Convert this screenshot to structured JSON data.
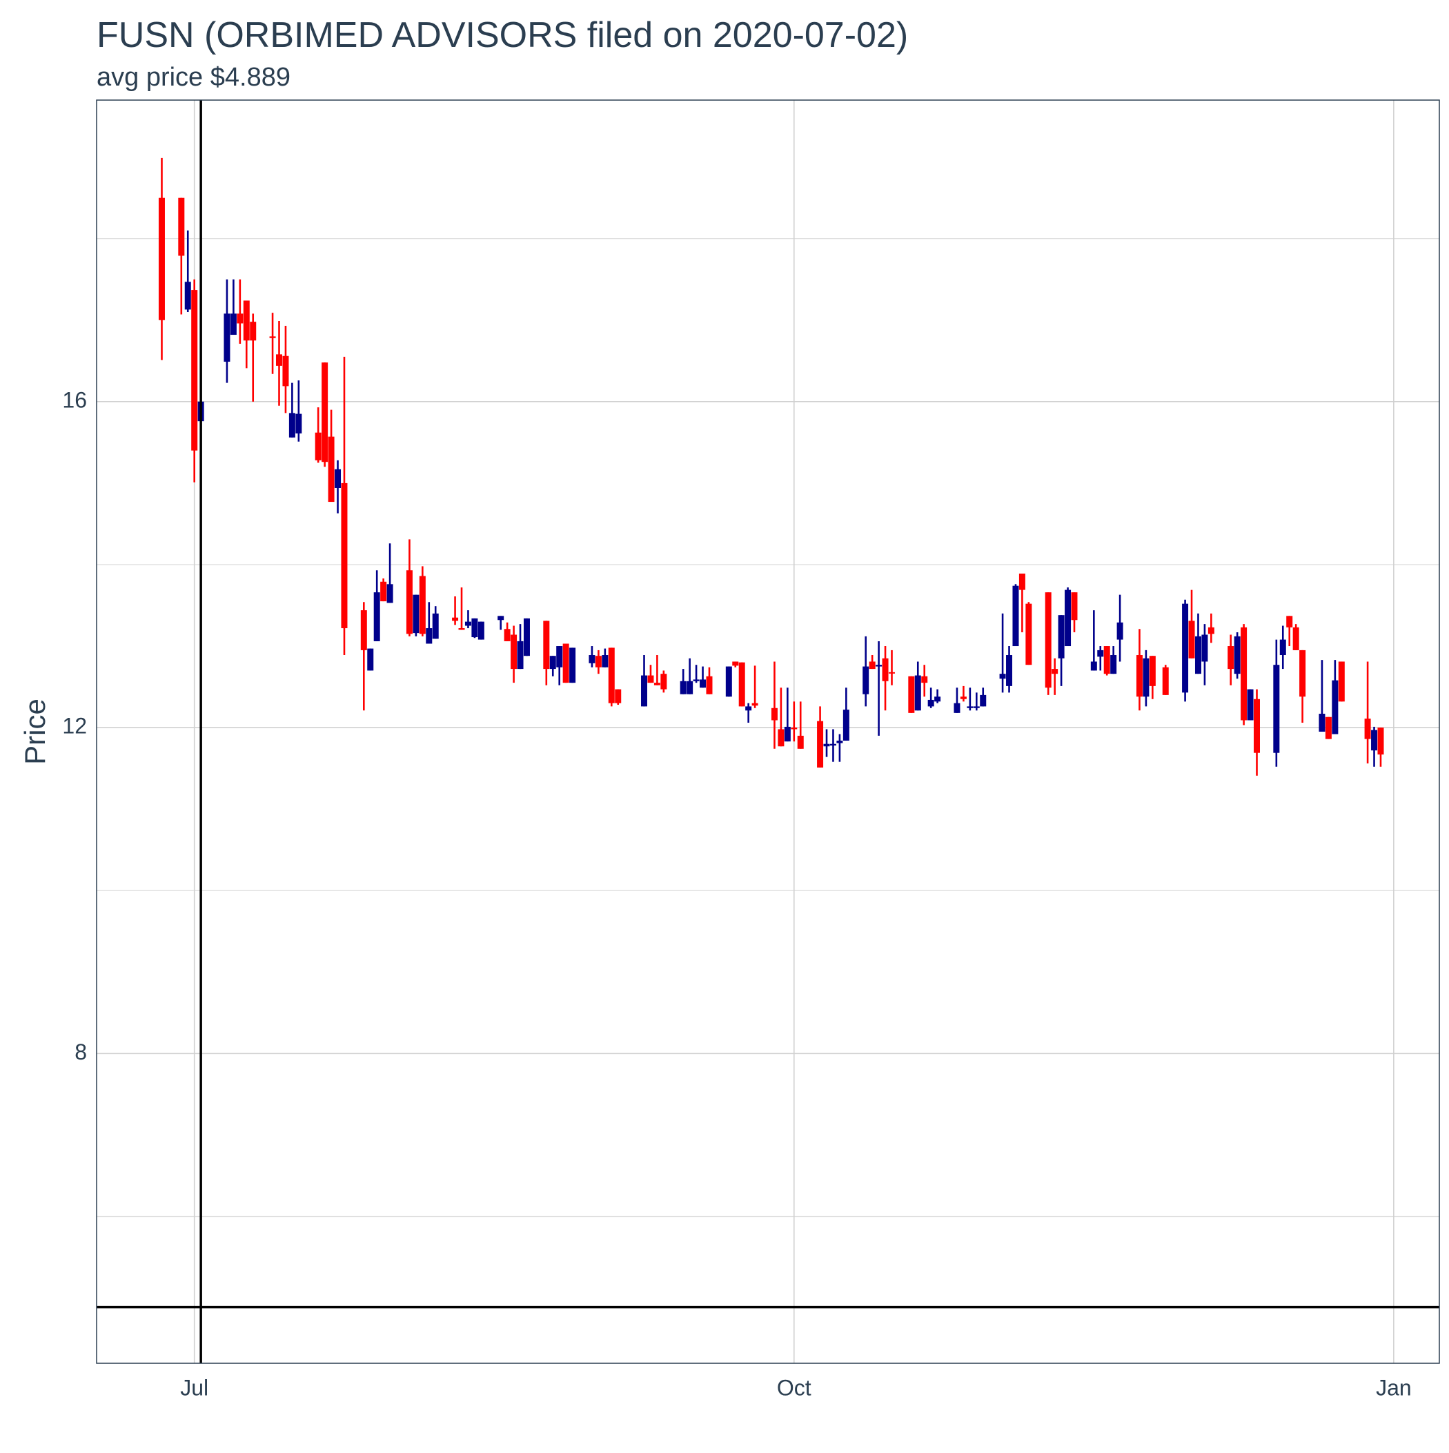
{
  "chart_data": {
    "type": "candlestick",
    "title": "FUSN (ORBIMED ADVISORS filed on 2020-07-02)",
    "subtitle": "avg price $4.889",
    "y_label": "Price",
    "x": [
      "2020-06-26",
      "2020-06-29",
      "2020-06-30",
      "2020-07-01",
      "2020-07-02",
      "2020-07-06",
      "2020-07-07",
      "2020-07-08",
      "2020-07-09",
      "2020-07-10",
      "2020-07-13",
      "2020-07-14",
      "2020-07-15",
      "2020-07-16",
      "2020-07-17",
      "2020-07-20",
      "2020-07-21",
      "2020-07-22",
      "2020-07-23",
      "2020-07-24",
      "2020-07-27",
      "2020-07-28",
      "2020-07-29",
      "2020-07-30",
      "2020-07-31",
      "2020-08-03",
      "2020-08-04",
      "2020-08-05",
      "2020-08-06",
      "2020-08-07",
      "2020-08-10",
      "2020-08-11",
      "2020-08-12",
      "2020-08-13",
      "2020-08-14",
      "2020-08-17",
      "2020-08-18",
      "2020-08-19",
      "2020-08-20",
      "2020-08-21",
      "2020-08-24",
      "2020-08-25",
      "2020-08-26",
      "2020-08-27",
      "2020-08-28",
      "2020-08-31",
      "2020-09-01",
      "2020-09-02",
      "2020-09-03",
      "2020-09-04",
      "2020-09-08",
      "2020-09-09",
      "2020-09-10",
      "2020-09-11",
      "2020-09-14",
      "2020-09-15",
      "2020-09-16",
      "2020-09-17",
      "2020-09-18",
      "2020-09-21",
      "2020-09-22",
      "2020-09-23",
      "2020-09-24",
      "2020-09-25",
      "2020-09-28",
      "2020-09-29",
      "2020-09-30",
      "2020-10-01",
      "2020-10-02",
      "2020-10-05",
      "2020-10-06",
      "2020-10-07",
      "2020-10-08",
      "2020-10-09",
      "2020-10-12",
      "2020-10-13",
      "2020-10-14",
      "2020-10-15",
      "2020-10-16",
      "2020-10-19",
      "2020-10-20",
      "2020-10-21",
      "2020-10-22",
      "2020-10-23",
      "2020-10-26",
      "2020-10-27",
      "2020-10-28",
      "2020-10-29",
      "2020-10-30",
      "2020-11-02",
      "2020-11-03",
      "2020-11-04",
      "2020-11-05",
      "2020-11-06",
      "2020-11-09",
      "2020-11-10",
      "2020-11-11",
      "2020-11-12",
      "2020-11-13",
      "2020-11-16",
      "2020-11-17",
      "2020-11-18",
      "2020-11-19",
      "2020-11-20",
      "2020-11-23",
      "2020-11-24",
      "2020-11-25",
      "2020-11-27",
      "2020-11-30",
      "2020-12-01",
      "2020-12-02",
      "2020-12-03",
      "2020-12-04",
      "2020-12-07",
      "2020-12-08",
      "2020-12-09",
      "2020-12-10",
      "2020-12-11",
      "2020-12-14",
      "2020-12-15",
      "2020-12-16",
      "2020-12-17",
      "2020-12-18",
      "2020-12-21",
      "2020-12-22",
      "2020-12-23",
      "2020-12-24",
      "2020-12-28",
      "2020-12-29",
      "2020-12-30"
    ],
    "open": [
      18.5,
      18.5,
      17.13,
      17.37,
      15.76,
      16.49,
      16.82,
      17.08,
      17.24,
      16.98,
      16.8,
      16.58,
      16.56,
      15.56,
      15.61,
      15.62,
      16.48,
      15.57,
      14.94,
      15.0,
      13.44,
      12.7,
      13.06,
      13.79,
      13.53,
      13.93,
      13.16,
      13.86,
      13.03,
      13.09,
      13.35,
      13.22,
      13.25,
      13.11,
      13.08,
      13.32,
      13.21,
      13.14,
      12.72,
      12.88,
      13.31,
      12.72,
      12.74,
      13.03,
      12.55,
      12.79,
      12.88,
      12.74,
      12.98,
      12.47,
      12.26,
      12.64,
      12.55,
      12.66,
      12.41,
      12.41,
      12.57,
      12.49,
      12.63,
      12.38,
      12.81,
      12.8,
      12.21,
      12.3,
      12.24,
      11.98,
      11.83,
      12.0,
      11.9,
      12.08,
      11.77,
      11.78,
      11.81,
      11.84,
      12.41,
      12.81,
      12.75,
      12.85,
      12.68,
      12.63,
      12.21,
      12.63,
      12.26,
      12.32,
      12.18,
      12.38,
      12.24,
      12.24,
      12.26,
      12.6,
      12.51,
      13.0,
      13.89,
      13.52,
      13.66,
      12.72,
      12.85,
      13.0,
      13.66,
      12.7,
      12.87,
      13.0,
      12.66,
      13.08,
      12.89,
      12.38,
      12.88,
      12.74,
      12.43,
      13.31,
      12.66,
      12.81,
      13.23,
      13.0,
      12.66,
      13.23,
      12.09,
      12.35,
      11.69,
      12.89,
      13.37,
      13.23,
      12.95,
      11.95,
      12.13,
      11.92,
      12.81,
      12.11,
      11.72,
      12.0
    ],
    "high": [
      18.99,
      18.5,
      18.1,
      17.5,
      16.0,
      17.5,
      17.5,
      17.5,
      17.24,
      17.08,
      17.09,
      16.99,
      16.93,
      16.23,
      16.26,
      15.93,
      16.48,
      15.9,
      15.28,
      16.55,
      13.54,
      12.97,
      13.93,
      13.83,
      14.26,
      14.31,
      13.63,
      13.98,
      13.54,
      13.49,
      13.61,
      13.72,
      13.44,
      13.34,
      13.3,
      13.37,
      13.29,
      13.25,
      13.27,
      13.34,
      13.31,
      12.88,
      13.0,
      13.03,
      12.98,
      13.0,
      12.95,
      12.97,
      12.98,
      12.47,
      12.89,
      12.77,
      12.89,
      12.7,
      12.72,
      12.85,
      12.77,
      12.75,
      12.74,
      12.75,
      12.81,
      12.8,
      12.3,
      12.76,
      12.81,
      12.49,
      12.49,
      12.32,
      12.32,
      12.26,
      11.98,
      11.98,
      11.92,
      12.49,
      13.12,
      12.89,
      13.06,
      13.0,
      12.95,
      12.63,
      12.81,
      12.77,
      12.49,
      12.47,
      12.49,
      12.51,
      12.49,
      12.43,
      12.49,
      13.4,
      13.0,
      13.76,
      13.89,
      13.54,
      13.66,
      12.85,
      13.38,
      13.72,
      13.66,
      13.44,
      13.0,
      13.0,
      13.0,
      13.63,
      13.21,
      12.95,
      12.88,
      12.77,
      13.57,
      13.69,
      13.4,
      13.27,
      13.4,
      13.14,
      13.17,
      13.27,
      12.47,
      12.47,
      13.08,
      13.25,
      13.37,
      13.27,
      12.95,
      12.83,
      12.13,
      12.83,
      12.81,
      12.81,
      12.01,
      12.0
    ],
    "low": [
      16.51,
      17.07,
      17.1,
      15.01,
      15.76,
      16.23,
      16.82,
      16.71,
      16.41,
      16.0,
      16.34,
      15.95,
      15.86,
      15.56,
      15.51,
      15.25,
      15.2,
      14.77,
      14.63,
      12.89,
      12.21,
      12.7,
      13.06,
      13.55,
      13.53,
      13.12,
      13.12,
      13.12,
      13.03,
      13.09,
      13.26,
      13.2,
      13.22,
      13.1,
      13.08,
      13.2,
      13.06,
      12.55,
      12.72,
      12.88,
      12.52,
      12.63,
      12.52,
      12.55,
      12.55,
      12.74,
      12.66,
      12.74,
      12.26,
      12.28,
      12.26,
      12.55,
      12.52,
      12.43,
      12.41,
      12.41,
      12.55,
      12.49,
      12.41,
      12.38,
      12.74,
      12.26,
      12.06,
      12.24,
      11.74,
      11.77,
      11.83,
      11.83,
      11.74,
      11.51,
      11.64,
      11.58,
      11.58,
      11.84,
      12.26,
      12.72,
      11.9,
      12.21,
      12.52,
      12.18,
      12.21,
      12.38,
      12.24,
      12.3,
      12.18,
      12.32,
      12.21,
      12.21,
      12.26,
      12.43,
      12.43,
      13.0,
      13.17,
      12.77,
      12.4,
      12.4,
      12.51,
      13.0,
      13.17,
      12.7,
      12.7,
      12.64,
      12.66,
      12.81,
      12.21,
      12.26,
      12.35,
      12.4,
      12.32,
      12.85,
      12.66,
      12.52,
      13.04,
      12.52,
      12.6,
      12.03,
      12.09,
      11.41,
      11.52,
      12.72,
      13.0,
      12.95,
      12.06,
      11.95,
      11.86,
      11.92,
      12.32,
      11.56,
      11.52,
      11.52
    ],
    "close": [
      17.0,
      17.79,
      17.47,
      15.4,
      16.0,
      17.08,
      17.08,
      16.96,
      16.75,
      16.75,
      16.78,
      16.44,
      16.19,
      15.86,
      15.85,
      15.28,
      15.26,
      14.77,
      15.17,
      13.22,
      12.95,
      12.97,
      13.66,
      13.55,
      13.76,
      13.15,
      13.63,
      13.15,
      13.22,
      13.4,
      13.31,
      13.2,
      13.3,
      13.34,
      13.3,
      13.37,
      13.06,
      12.72,
      13.06,
      13.34,
      12.72,
      12.88,
      13.0,
      12.55,
      12.98,
      12.89,
      12.74,
      12.89,
      12.3,
      12.3,
      12.64,
      12.55,
      12.52,
      12.47,
      12.57,
      12.57,
      12.59,
      12.59,
      12.41,
      12.75,
      12.76,
      12.26,
      12.26,
      12.27,
      12.09,
      11.77,
      12.01,
      11.98,
      11.74,
      11.51,
      11.8,
      11.8,
      11.84,
      12.22,
      12.75,
      12.72,
      12.77,
      12.57,
      12.67,
      12.18,
      12.64,
      12.55,
      12.34,
      12.38,
      12.3,
      12.35,
      12.26,
      12.26,
      12.4,
      12.66,
      12.89,
      13.74,
      13.69,
      12.77,
      12.49,
      12.66,
      13.38,
      13.69,
      13.32,
      12.81,
      12.95,
      12.66,
      12.89,
      13.29,
      12.38,
      12.85,
      12.51,
      12.4,
      13.52,
      12.85,
      13.12,
      13.14,
      13.15,
      12.72,
      13.12,
      12.09,
      12.47,
      11.69,
      12.77,
      13.08,
      13.23,
      12.95,
      12.38,
      12.17,
      11.86,
      12.58,
      12.32,
      11.86,
      11.97,
      11.67
    ],
    "up_color": "#00008b",
    "down_color": "#ff0000",
    "xlim": [
      "2020-06-16",
      "2021-01-08"
    ],
    "xticks": [
      {
        "value": "2020-07-01",
        "label": "Jul"
      },
      {
        "value": "2020-10-01",
        "label": "Oct"
      },
      {
        "value": "2021-01-01",
        "label": "Jan"
      }
    ],
    "ylim": [
      4.2,
      19.7
    ],
    "yticks": [
      8,
      12,
      16
    ],
    "y_minor_grid": [
      6,
      10,
      14,
      18
    ],
    "grid": true,
    "hline": 4.889,
    "vline": "2020-07-02"
  }
}
